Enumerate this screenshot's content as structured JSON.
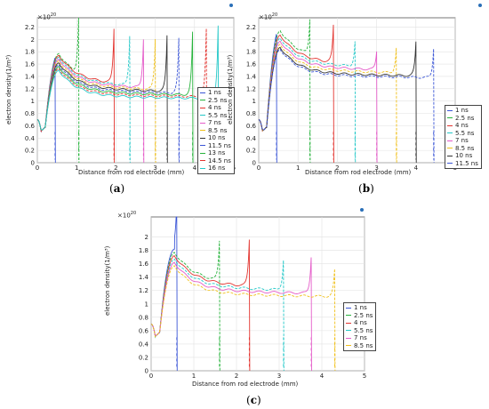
{
  "chart_data": [
    {
      "panel": "(a)",
      "type": "line",
      "xlabel": "Distance from rod electrode (mm)",
      "ylabel": "electron density(1/m³)",
      "y_multiplier": "×10",
      "y_exponent": "20",
      "xlim": [
        0,
        5
      ],
      "ylim": [
        0,
        2.35
      ],
      "xticks": [
        "0",
        "1",
        "2",
        "3",
        "4",
        "5"
      ],
      "yticks": [
        "0",
        "0.2",
        "0.4",
        "0.6",
        "0.8",
        "1",
        "1.2",
        "1.4",
        "1.6",
        "1.8",
        "2",
        "2.2"
      ],
      "legend": "right",
      "grid": true,
      "series": [
        {
          "name": "1 ns",
          "color": "#3a55d6",
          "front": 0.45,
          "peak": 1.85,
          "plateau": 1.38
        },
        {
          "name": "2.5 ns",
          "color": "#27b33c",
          "front": 1.05,
          "peak": 2.3,
          "plateau": 1.35
        },
        {
          "name": "4 ns",
          "color": "#e3342f",
          "front": 1.95,
          "peak": 2.2,
          "plateau": 1.32
        },
        {
          "name": "5.5 ns",
          "color": "#24c8c8",
          "front": 2.35,
          "peak": 2.1,
          "plateau": 1.29
        },
        {
          "name": "7 ns",
          "color": "#e55cc9",
          "front": 2.7,
          "peak": 2.05,
          "plateau": 1.26
        },
        {
          "name": "8.5 ns",
          "color": "#f0c01a",
          "front": 3.0,
          "peak": 2.05,
          "plateau": 1.23
        },
        {
          "name": "10 ns",
          "color": "#333333",
          "front": 3.3,
          "peak": 2.1,
          "plateau": 1.2
        },
        {
          "name": "11.5 ns",
          "color": "#3a55d6",
          "front": 3.6,
          "peak": 2.05,
          "plateau": 1.17
        },
        {
          "name": "13 ns",
          "color": "#27b33c",
          "front": 3.95,
          "peak": 2.15,
          "plateau": 1.14
        },
        {
          "name": "14.5 ns",
          "color": "#e3342f",
          "front": 4.3,
          "peak": 2.2,
          "plateau": 1.11
        },
        {
          "name": "16 ns",
          "color": "#24c8c8",
          "front": 4.6,
          "peak": 2.25,
          "plateau": 1.08
        }
      ]
    },
    {
      "panel": "(b)",
      "type": "line",
      "xlabel": "Distance from rod electrode (mm)",
      "ylabel": "electron density(1/m³)",
      "y_multiplier": "×10",
      "y_exponent": "20",
      "xlim": [
        0,
        5
      ],
      "ylim": [
        0,
        2.35
      ],
      "xticks": [
        "0",
        "1",
        "2",
        "3",
        "4",
        "5"
      ],
      "yticks": [
        "0",
        "0.2",
        "0.4",
        "0.6",
        "0.8",
        "1",
        "1.2",
        "1.4",
        "1.6",
        "1.8",
        "2",
        "2.2"
      ],
      "legend": "right",
      "grid": true,
      "series": [
        {
          "name": "1 ns",
          "color": "#3a55d6",
          "front": 0.45,
          "peak": 2.2,
          "plateau": 1.8
        },
        {
          "name": "2.5 ns",
          "color": "#27b33c",
          "front": 1.3,
          "peak": 2.3,
          "plateau": 1.72
        },
        {
          "name": "4 ns",
          "color": "#e3342f",
          "front": 1.9,
          "peak": 2.25,
          "plateau": 1.65
        },
        {
          "name": "5.5 ns",
          "color": "#24c8c8",
          "front": 2.45,
          "peak": 2.0,
          "plateau": 1.6
        },
        {
          "name": "7 ns",
          "color": "#e55cc9",
          "front": 3.0,
          "peak": 1.85,
          "plateau": 1.55
        },
        {
          "name": "8.5 ns",
          "color": "#f0c01a",
          "front": 3.5,
          "peak": 1.9,
          "plateau": 1.5
        },
        {
          "name": "10 ns",
          "color": "#333333",
          "front": 4.0,
          "peak": 2.0,
          "plateau": 1.45
        },
        {
          "name": "11.5 ns",
          "color": "#3a55d6",
          "front": 4.45,
          "peak": 1.9,
          "plateau": 1.42
        }
      ]
    },
    {
      "panel": "(c)",
      "type": "line",
      "xlabel": "Distance from rod electrode (mm)",
      "ylabel": "electron density(1/m³)",
      "y_multiplier": "×10",
      "y_exponent": "20",
      "xlim": [
        0,
        5
      ],
      "ylim": [
        0,
        2.3
      ],
      "xticks": [
        "0",
        "1",
        "2",
        "3",
        "4",
        "5"
      ],
      "yticks": [
        "0",
        "0.2",
        "0.4",
        "0.6",
        "0.8",
        "1",
        "1.2",
        "1.4",
        "1.6",
        "1.8",
        "2"
      ],
      "legend": "right",
      "grid": true,
      "series": [
        {
          "name": "1 ns",
          "color": "#3a55d6",
          "front": 0.6,
          "peak": 2.2,
          "plateau": 1.4
        },
        {
          "name": "2.5 ns",
          "color": "#27b33c",
          "front": 1.6,
          "peak": 1.95,
          "plateau": 1.35
        },
        {
          "name": "4 ns",
          "color": "#e3342f",
          "front": 2.3,
          "peak": 2.0,
          "plateau": 1.3
        },
        {
          "name": "5.5 ns",
          "color": "#24c8c8",
          "front": 3.1,
          "peak": 1.7,
          "plateau": 1.25
        },
        {
          "name": "7 ns",
          "color": "#e55cc9",
          "front": 3.75,
          "peak": 1.75,
          "plateau": 1.2
        },
        {
          "name": "8.5 ns",
          "color": "#f0c01a",
          "front": 4.3,
          "peak": 1.55,
          "plateau": 1.15
        }
      ]
    }
  ]
}
